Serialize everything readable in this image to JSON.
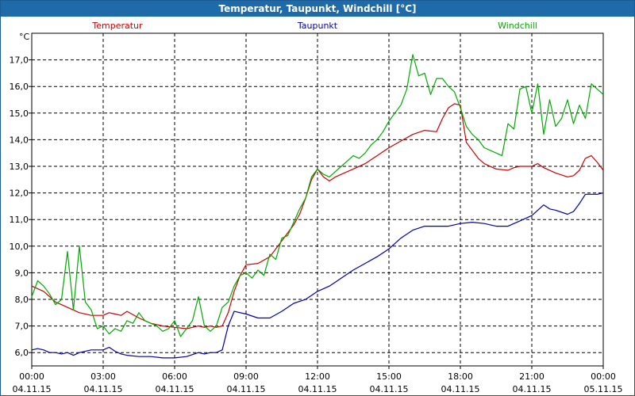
{
  "window": {
    "title": "Temperatur, Taupunkt, Windchill [°C]"
  },
  "chart_data": {
    "type": "line",
    "unit_label": "°C",
    "ylim": [
      5.5,
      18.0
    ],
    "yticks": [
      "6,0",
      "7,0",
      "8,0",
      "9,0",
      "10,0",
      "11,0",
      "12,0",
      "13,0",
      "14,0",
      "15,0",
      "16,0",
      "17,0"
    ],
    "ytick_values": [
      6,
      7,
      8,
      9,
      10,
      11,
      12,
      13,
      14,
      15,
      16,
      17
    ],
    "xlim": [
      0,
      24
    ],
    "xticks": [
      {
        "time": "00:00",
        "date": "04.11.15"
      },
      {
        "time": "03:00",
        "date": "04.11.15"
      },
      {
        "time": "06:00",
        "date": "04.11.15"
      },
      {
        "time": "09:00",
        "date": "04.11.15"
      },
      {
        "time": "12:00",
        "date": "04.11.15"
      },
      {
        "time": "15:00",
        "date": "04.11.15"
      },
      {
        "time": "18:00",
        "date": "04.11.15"
      },
      {
        "time": "21:00",
        "date": "04.11.15"
      },
      {
        "time": "00:00",
        "date": "05.11.15"
      }
    ],
    "xtick_values": [
      0,
      3,
      6,
      9,
      12,
      15,
      18,
      21,
      24
    ],
    "grid": true,
    "series": [
      {
        "name": "Temperatur",
        "color": "#cc0000",
        "x": [
          0,
          0.25,
          0.5,
          0.75,
          1,
          1.25,
          1.5,
          1.75,
          2,
          2.5,
          3,
          3.25,
          3.5,
          3.75,
          4,
          4.5,
          5,
          5.5,
          6,
          6.5,
          7,
          7.25,
          7.5,
          7.75,
          8,
          8.25,
          8.5,
          8.75,
          9,
          9.5,
          10,
          10.5,
          11,
          11.25,
          11.5,
          11.75,
          12,
          12.25,
          12.5,
          12.75,
          13,
          13.5,
          14,
          14.5,
          15,
          15.5,
          16,
          16.5,
          17,
          17.25,
          17.5,
          17.75,
          18,
          18.25,
          18.5,
          18.75,
          19,
          19.5,
          20,
          20.25,
          20.5,
          21,
          21.25,
          21.5,
          22,
          22.5,
          22.75,
          23,
          23.25,
          23.5,
          23.75,
          24
        ],
        "values": [
          8.5,
          8.4,
          8.3,
          8.1,
          7.9,
          7.8,
          7.7,
          7.6,
          7.5,
          7.4,
          7.4,
          7.5,
          7.45,
          7.4,
          7.55,
          7.3,
          7.1,
          7.0,
          6.95,
          6.9,
          7.0,
          6.95,
          7.0,
          6.95,
          7.0,
          7.5,
          8.3,
          8.9,
          9.3,
          9.35,
          9.6,
          10.2,
          10.8,
          11.2,
          11.8,
          12.5,
          12.9,
          12.6,
          12.45,
          12.6,
          12.7,
          12.9,
          13.1,
          13.4,
          13.7,
          13.95,
          14.2,
          14.35,
          14.3,
          14.8,
          15.2,
          15.35,
          15.3,
          13.9,
          13.6,
          13.3,
          13.1,
          12.9,
          12.85,
          12.95,
          13.0,
          13.0,
          13.1,
          12.95,
          12.75,
          12.6,
          12.65,
          12.85,
          13.3,
          13.4,
          13.15,
          12.85
        ]
      },
      {
        "name": "Taupunkt",
        "color": "#0000aa",
        "x": [
          0,
          0.25,
          0.5,
          0.75,
          1,
          1.25,
          1.5,
          1.75,
          2,
          2.5,
          3,
          3.25,
          3.5,
          3.75,
          4,
          4.5,
          5,
          5.5,
          6,
          6.5,
          7,
          7.25,
          7.5,
          7.75,
          8,
          8.25,
          8.5,
          9,
          9.5,
          10,
          10.5,
          11,
          11.5,
          12,
          12.25,
          12.5,
          12.75,
          13,
          13.5,
          14,
          14.5,
          15,
          15.5,
          16,
          16.5,
          17,
          17.5,
          18,
          18.5,
          19,
          19.5,
          20,
          20.5,
          21,
          21.5,
          21.75,
          22,
          22.5,
          22.75,
          23,
          23.25,
          23.5,
          23.75,
          24
        ],
        "values": [
          6.1,
          6.15,
          6.1,
          6.0,
          6.0,
          5.95,
          6.0,
          5.9,
          6.0,
          6.1,
          6.1,
          6.2,
          6.05,
          5.95,
          5.9,
          5.85,
          5.85,
          5.8,
          5.8,
          5.85,
          6.0,
          5.95,
          6.0,
          6.0,
          6.1,
          7.0,
          7.55,
          7.45,
          7.3,
          7.3,
          7.55,
          7.85,
          8.0,
          8.3,
          8.4,
          8.5,
          8.65,
          8.8,
          9.1,
          9.35,
          9.6,
          9.9,
          10.3,
          10.6,
          10.75,
          10.75,
          10.75,
          10.85,
          10.9,
          10.85,
          10.75,
          10.75,
          10.95,
          11.15,
          11.55,
          11.4,
          11.35,
          11.2,
          11.3,
          11.6,
          11.95,
          11.95,
          11.95,
          12.0
        ]
      },
      {
        "name": "Windchill",
        "color": "#00aa00",
        "x": [
          0,
          0.25,
          0.5,
          0.75,
          1,
          1.25,
          1.5,
          1.75,
          2,
          2.25,
          2.5,
          2.75,
          3,
          3.25,
          3.5,
          3.75,
          4,
          4.25,
          4.5,
          4.75,
          5,
          5.25,
          5.5,
          5.75,
          6,
          6.25,
          6.5,
          6.75,
          7,
          7.25,
          7.5,
          7.75,
          8,
          8.25,
          8.5,
          8.75,
          9,
          9.25,
          9.5,
          9.75,
          10,
          10.25,
          10.5,
          10.75,
          11,
          11.25,
          11.5,
          11.75,
          12,
          12.25,
          12.5,
          12.75,
          13,
          13.25,
          13.5,
          13.75,
          14,
          14.25,
          14.5,
          14.75,
          15,
          15.25,
          15.5,
          15.75,
          16,
          16.25,
          16.5,
          16.75,
          17,
          17.25,
          17.5,
          17.75,
          18,
          18.25,
          18.5,
          18.75,
          19,
          19.25,
          19.5,
          19.75,
          20,
          20.25,
          20.5,
          20.75,
          21,
          21.25,
          21.5,
          21.75,
          22,
          22.25,
          22.5,
          22.75,
          23,
          23.25,
          23.5,
          23.75,
          24
        ],
        "values": [
          8.1,
          8.7,
          8.5,
          8.2,
          7.8,
          8.0,
          9.8,
          7.6,
          10.0,
          7.9,
          7.6,
          6.9,
          7.0,
          6.7,
          6.9,
          6.8,
          7.2,
          7.1,
          7.5,
          7.2,
          7.1,
          7.0,
          6.8,
          6.9,
          7.2,
          6.6,
          6.9,
          7.2,
          8.1,
          7.0,
          6.8,
          7.0,
          7.7,
          7.9,
          8.5,
          8.9,
          9.0,
          8.8,
          9.1,
          8.9,
          9.7,
          9.5,
          10.3,
          10.4,
          10.9,
          11.4,
          11.8,
          12.6,
          12.9,
          12.7,
          12.6,
          12.8,
          13.0,
          13.2,
          13.4,
          13.3,
          13.5,
          13.8,
          14.0,
          14.3,
          14.7,
          15.0,
          15.3,
          15.9,
          17.2,
          16.4,
          16.5,
          15.7,
          16.3,
          16.3,
          16.0,
          15.8,
          15.2,
          14.5,
          14.2,
          14.0,
          13.7,
          13.6,
          13.5,
          13.4,
          14.6,
          14.4,
          15.9,
          16.0,
          15.0,
          16.1,
          14.2,
          15.5,
          14.5,
          14.8,
          15.5,
          14.6,
          15.3,
          14.8,
          16.1,
          15.9,
          15.7
        ]
      }
    ]
  }
}
